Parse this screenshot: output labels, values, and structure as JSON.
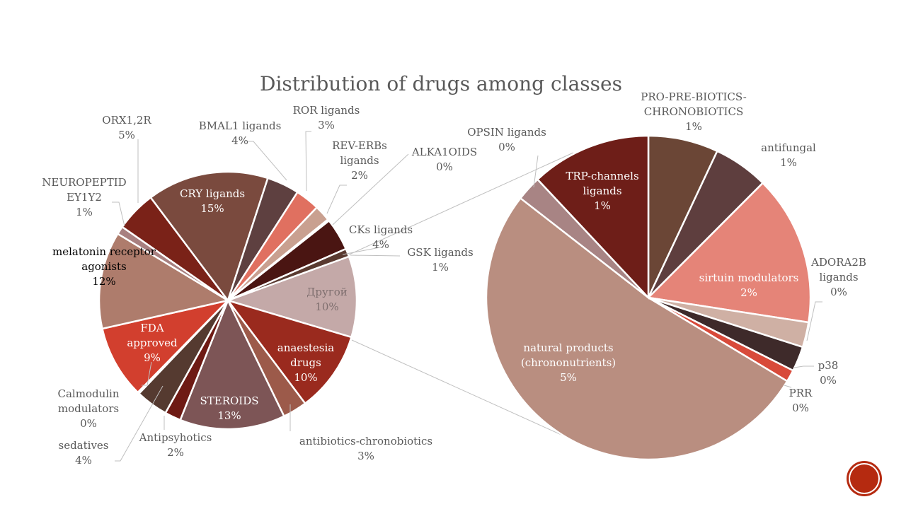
{
  "chart_data": {
    "type": "pie",
    "subtype": "pie-of-pie",
    "title": "Distribution of drugs among classes",
    "main_pie": [
      {
        "name": "Другой",
        "label": "10%",
        "value": 10,
        "color": "#c4a9a8"
      },
      {
        "name": "anaestesia drugs",
        "label": "10%",
        "value": 10,
        "color": "#9a2a1e"
      },
      {
        "name": "antibiotics-chronobiotics",
        "label": "3%",
        "value": 3,
        "color": "#9c5a4a"
      },
      {
        "name": "STEROIDS",
        "label": "13%",
        "value": 13,
        "color": "#7d5556"
      },
      {
        "name": "Antipsyhotics",
        "label": "2%",
        "value": 2,
        "color": "#6e1a14"
      },
      {
        "name": "sedatives",
        "label": "4%",
        "value": 4,
        "color": "#553a30"
      },
      {
        "name": "Calmodulin modulators",
        "label": "0%",
        "value": 0.2,
        "color": "#8a5040"
      },
      {
        "name": "FDA approved",
        "label": "9%",
        "value": 9,
        "color": "#d23f2e"
      },
      {
        "name": "melatonin receptor agonists",
        "label": "12%",
        "value": 12,
        "color": "#ae7c6c"
      },
      {
        "name": "NEUROPEPTID EY1Y2",
        "label": "1%",
        "value": 1,
        "color": "#a88080"
      },
      {
        "name": "ORX1,2R",
        "label": "5%",
        "value": 5,
        "color": "#7a2218"
      },
      {
        "name": "CRY ligands",
        "label": "15%",
        "value": 15,
        "color": "#7a4a3e"
      },
      {
        "name": "BMAL1 ligands",
        "label": "4%",
        "value": 4,
        "color": "#5e4040"
      },
      {
        "name": "ROR ligands",
        "label": "3%",
        "value": 3,
        "color": "#e07060"
      },
      {
        "name": "REV-ERBs ligands",
        "label": "2%",
        "value": 2,
        "color": "#c9a090"
      },
      {
        "name": "ALKA1OIDS",
        "label": "0%",
        "value": 0.2,
        "color": "#b07060"
      },
      {
        "name": "CKs ligands",
        "label": "4%",
        "value": 4,
        "color": "#4a1512"
      },
      {
        "name": "GSK ligands",
        "label": "1%",
        "value": 1,
        "color": "#5a3a30"
      }
    ],
    "secondary_pie": [
      {
        "name": "PRO-PRE-BIOTICS-CHRONOBIOTICS",
        "label": "1%",
        "value": 0.7,
        "color": "#6b4636"
      },
      {
        "name": "antifungal",
        "label": "1%",
        "value": 0.55,
        "color": "#5e3e3e"
      },
      {
        "name": "sirtuin modulators",
        "label": "2%",
        "value": 1.5,
        "color": "#e58478"
      },
      {
        "name": "ADORA2B ligands",
        "label": "0%",
        "value": 0.25,
        "color": "#cfb0a4"
      },
      {
        "name": "p38",
        "label": "0%",
        "value": 0.25,
        "color": "#3e2a2a"
      },
      {
        "name": "PRR",
        "label": "0%",
        "value": 0.12,
        "color": "#d84a3a"
      },
      {
        "name": "natural products (chrononutrients)",
        "label": "5%",
        "value": 5.2,
        "color": "#b98e80"
      },
      {
        "name": "OPSIN ligands",
        "label": "0%",
        "value": 0.25,
        "color": "#a88484"
      },
      {
        "name": "TRP-channels ligands",
        "label": "1%",
        "value": 1.2,
        "color": "#6e1e18"
      }
    ],
    "legend": "none"
  },
  "text": {
    "m": [
      "Другой",
      "anaestesia\ndrugs",
      "antibiotics-chronobiotics",
      "STEROIDS",
      "Antipsyhotics",
      "sedatives",
      "Calmodulin\nmodulators",
      "FDA\napproved",
      "melatonin receptor\nagonists",
      "NEUROPEPTID\nEY1Y2",
      "ORX1,2R",
      "CRY ligands",
      "BMAL1 ligands",
      "ROR ligands",
      "REV-ERBs\nligands",
      "ALKA1OIDS",
      "CKs ligands",
      "GSK ligands"
    ],
    "s": [
      "PRO-PRE-BIOTICS-\nCHRONOBIOTICS",
      "antifungal",
      "sirtuin modulators",
      "ADORA2B\nligands",
      "p38",
      "PRR",
      "natural products\n(chrononutrients)",
      "OPSIN ligands",
      "TRP-channels\nligands"
    ]
  }
}
